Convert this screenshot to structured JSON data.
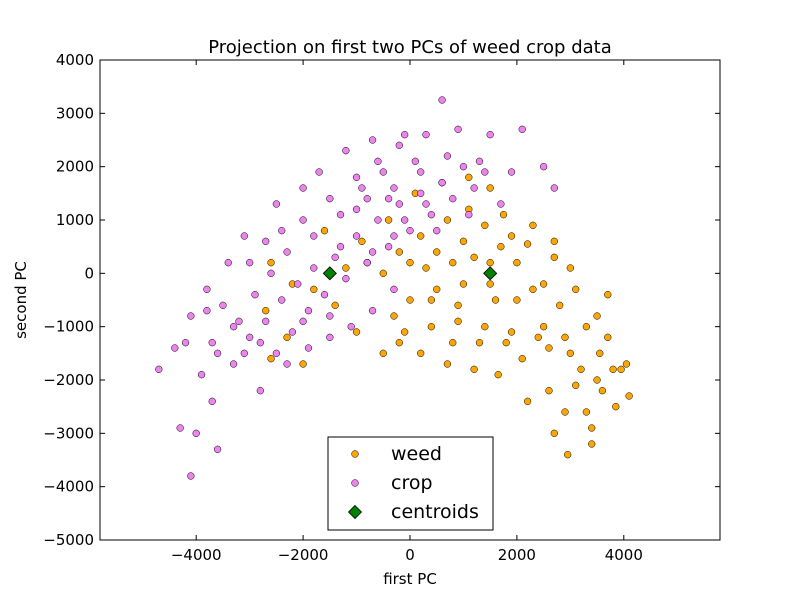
{
  "chart_data": {
    "type": "scatter",
    "title": "Projection on first two PCs of weed crop data",
    "xlabel": "first PC",
    "ylabel": "second PC",
    "xlim": [
      -5800,
      5800
    ],
    "ylim": [
      -5000,
      4000
    ],
    "xticks": [
      -4000,
      -2000,
      0,
      2000,
      4000
    ],
    "xtick_labels": [
      "−4000",
      "−2000",
      "0",
      "2000",
      "4000"
    ],
    "yticks": [
      -5000,
      -4000,
      -3000,
      -2000,
      -1000,
      0,
      1000,
      2000,
      3000,
      4000
    ],
    "ytick_labels": [
      "−5000",
      "−4000",
      "−3000",
      "−2000",
      "−1000",
      "0",
      "1000",
      "2000",
      "3000",
      "4000"
    ],
    "grid": false,
    "legend_position": "bottom-center",
    "series": [
      {
        "name": "weed",
        "color": "#FFA500",
        "marker": "circle",
        "points": [
          [
            1500,
            -200
          ],
          [
            2000,
            -500
          ],
          [
            2500,
            -1000
          ],
          [
            3000,
            -1500
          ],
          [
            3500,
            -2000
          ],
          [
            3800,
            -1800
          ],
          [
            4100,
            -2300
          ],
          [
            3300,
            -2600
          ],
          [
            2700,
            -3000
          ],
          [
            2950,
            -3400
          ],
          [
            3400,
            -2900
          ],
          [
            3500,
            -800
          ],
          [
            3100,
            -300
          ],
          [
            2700,
            300
          ],
          [
            2200,
            550
          ],
          [
            1700,
            500
          ],
          [
            1200,
            300
          ],
          [
            800,
            200
          ],
          [
            500,
            -300
          ],
          [
            0,
            -500
          ],
          [
            -300,
            -800
          ],
          [
            -200,
            -1300
          ],
          [
            200,
            -1500
          ],
          [
            700,
            -1700
          ],
          [
            1200,
            -1800
          ],
          [
            1650,
            -1900
          ],
          [
            2100,
            -1600
          ],
          [
            2600,
            -2200
          ],
          [
            3100,
            -2100
          ],
          [
            3550,
            -1500
          ],
          [
            3700,
            -1200
          ],
          [
            3950,
            -1800
          ],
          [
            2400,
            -1200
          ],
          [
            1900,
            -1100
          ],
          [
            1400,
            -1000
          ],
          [
            900,
            -900
          ],
          [
            400,
            -1000
          ],
          [
            -500,
            -1500
          ],
          [
            -1000,
            -1100
          ],
          [
            -1400,
            -600
          ],
          [
            -1800,
            -300
          ],
          [
            -2200,
            -200
          ],
          [
            -2600,
            200
          ],
          [
            -2700,
            -700
          ],
          [
            -2300,
            -1200
          ],
          [
            -2000,
            -1700
          ],
          [
            -2600,
            -1600
          ],
          [
            -1600,
            800
          ],
          [
            -900,
            600
          ],
          [
            -400,
            1000
          ],
          [
            100,
            1500
          ],
          [
            600,
            1700
          ],
          [
            1100,
            1800
          ],
          [
            1500,
            1600
          ],
          [
            1750,
            1100
          ],
          [
            1400,
            900
          ],
          [
            1000,
            600
          ],
          [
            500,
            400
          ],
          [
            0,
            200
          ],
          [
            -500,
            0
          ],
          [
            2300,
            -300
          ],
          [
            2800,
            -600
          ],
          [
            3300,
            -1000
          ],
          [
            2000,
            200
          ],
          [
            2500,
            -200
          ],
          [
            1600,
            -500
          ],
          [
            1000,
            -200
          ],
          [
            300,
            100
          ],
          [
            2900,
            -1200
          ],
          [
            3200,
            -1800
          ],
          [
            1800,
            -1300
          ],
          [
            1300,
            -1300
          ],
          [
            800,
            -1300
          ],
          [
            2200,
            -2400
          ],
          [
            3600,
            -2200
          ],
          [
            2900,
            -2600
          ],
          [
            3400,
            -3200
          ],
          [
            4050,
            -1700
          ],
          [
            3850,
            -2500
          ],
          [
            2300,
            900
          ],
          [
            2700,
            600
          ],
          [
            3000,
            100
          ],
          [
            1900,
            700
          ],
          [
            1100,
            1200
          ],
          [
            700,
            1000
          ],
          [
            200,
            700
          ],
          [
            -200,
            400
          ],
          [
            -800,
            200
          ],
          [
            -1200,
            100
          ],
          [
            2600,
            -1400
          ],
          [
            3700,
            -400
          ],
          [
            1500,
            200
          ],
          [
            900,
            -600
          ],
          [
            400,
            -500
          ],
          [
            -100,
            -1100
          ]
        ]
      },
      {
        "name": "crop",
        "color": "#EE82EE",
        "marker": "circle",
        "points": [
          [
            -4700,
            -1800
          ],
          [
            -4400,
            -1400
          ],
          [
            -4100,
            -800
          ],
          [
            -3800,
            -300
          ],
          [
            -3500,
            -600
          ],
          [
            -3200,
            -900
          ],
          [
            -3000,
            200
          ],
          [
            -2700,
            600
          ],
          [
            -2400,
            800
          ],
          [
            -2000,
            1000
          ],
          [
            -1500,
            1400
          ],
          [
            -1000,
            1800
          ],
          [
            -600,
            2100
          ],
          [
            -200,
            2400
          ],
          [
            300,
            2600
          ],
          [
            600,
            3250
          ],
          [
            900,
            2700
          ],
          [
            1500,
            2600
          ],
          [
            2100,
            2700
          ],
          [
            2500,
            2000
          ],
          [
            2700,
            1600
          ],
          [
            1900,
            1900
          ],
          [
            1300,
            2100
          ],
          [
            700,
            2200
          ],
          [
            200,
            1900
          ],
          [
            -300,
            1600
          ],
          [
            -800,
            1400
          ],
          [
            -1300,
            1100
          ],
          [
            -1800,
            700
          ],
          [
            -2300,
            400
          ],
          [
            -2600,
            0
          ],
          [
            -2900,
            -400
          ],
          [
            -3300,
            -1000
          ],
          [
            -3700,
            -1300
          ],
          [
            -3900,
            -1900
          ],
          [
            -3700,
            -2400
          ],
          [
            -3600,
            -3300
          ],
          [
            -4000,
            -3000
          ],
          [
            -4300,
            -2900
          ],
          [
            -4100,
            -3800
          ],
          [
            -2800,
            -2200
          ],
          [
            -2500,
            -1500
          ],
          [
            -2200,
            -1100
          ],
          [
            -1900,
            -700
          ],
          [
            -1600,
            -400
          ],
          [
            -1200,
            -100
          ],
          [
            -800,
            200
          ],
          [
            -400,
            500
          ],
          [
            0,
            800
          ],
          [
            400,
            1100
          ],
          [
            800,
            1400
          ],
          [
            1200,
            1600
          ],
          [
            -1000,
            700
          ],
          [
            -600,
            1000
          ],
          [
            -200,
            1300
          ],
          [
            200,
            1500
          ],
          [
            -1400,
            300
          ],
          [
            -1800,
            100
          ],
          [
            -2100,
            -200
          ],
          [
            -2400,
            -500
          ],
          [
            -2700,
            -900
          ],
          [
            -3000,
            -1200
          ],
          [
            -3300,
            -1700
          ],
          [
            -1500,
            -800
          ],
          [
            -1100,
            -1000
          ],
          [
            -700,
            -700
          ],
          [
            -300,
            -300
          ],
          [
            -900,
            1600
          ],
          [
            -500,
            1900
          ],
          [
            100,
            2100
          ],
          [
            -1700,
            1900
          ],
          [
            -1200,
            2300
          ],
          [
            -700,
            2500
          ],
          [
            -100,
            2600
          ],
          [
            -2000,
            1600
          ],
          [
            -2500,
            1300
          ],
          [
            -3100,
            700
          ],
          [
            -3400,
            200
          ],
          [
            -3800,
            -700
          ],
          [
            -4200,
            -1300
          ],
          [
            -3600,
            -1500
          ],
          [
            -3100,
            -1500
          ],
          [
            -2800,
            -1300
          ],
          [
            -2300,
            -1700
          ],
          [
            -1900,
            -1400
          ],
          [
            -1500,
            -1200
          ],
          [
            -2000,
            -900
          ],
          [
            -1300,
            500
          ],
          [
            -700,
            400
          ],
          [
            -300,
            700
          ],
          [
            300,
            1300
          ],
          [
            600,
            1700
          ],
          [
            1000,
            2000
          ],
          [
            1400,
            1900
          ],
          [
            1700,
            1300
          ],
          [
            1100,
            1100
          ],
          [
            500,
            800
          ],
          [
            -100,
            1000
          ],
          [
            -400,
            1400
          ],
          [
            -1000,
            1200
          ]
        ]
      },
      {
        "name": "centroids",
        "color": "#008000",
        "marker": "diamond",
        "points": [
          [
            -1500,
            0
          ],
          [
            1500,
            0
          ]
        ]
      }
    ]
  }
}
